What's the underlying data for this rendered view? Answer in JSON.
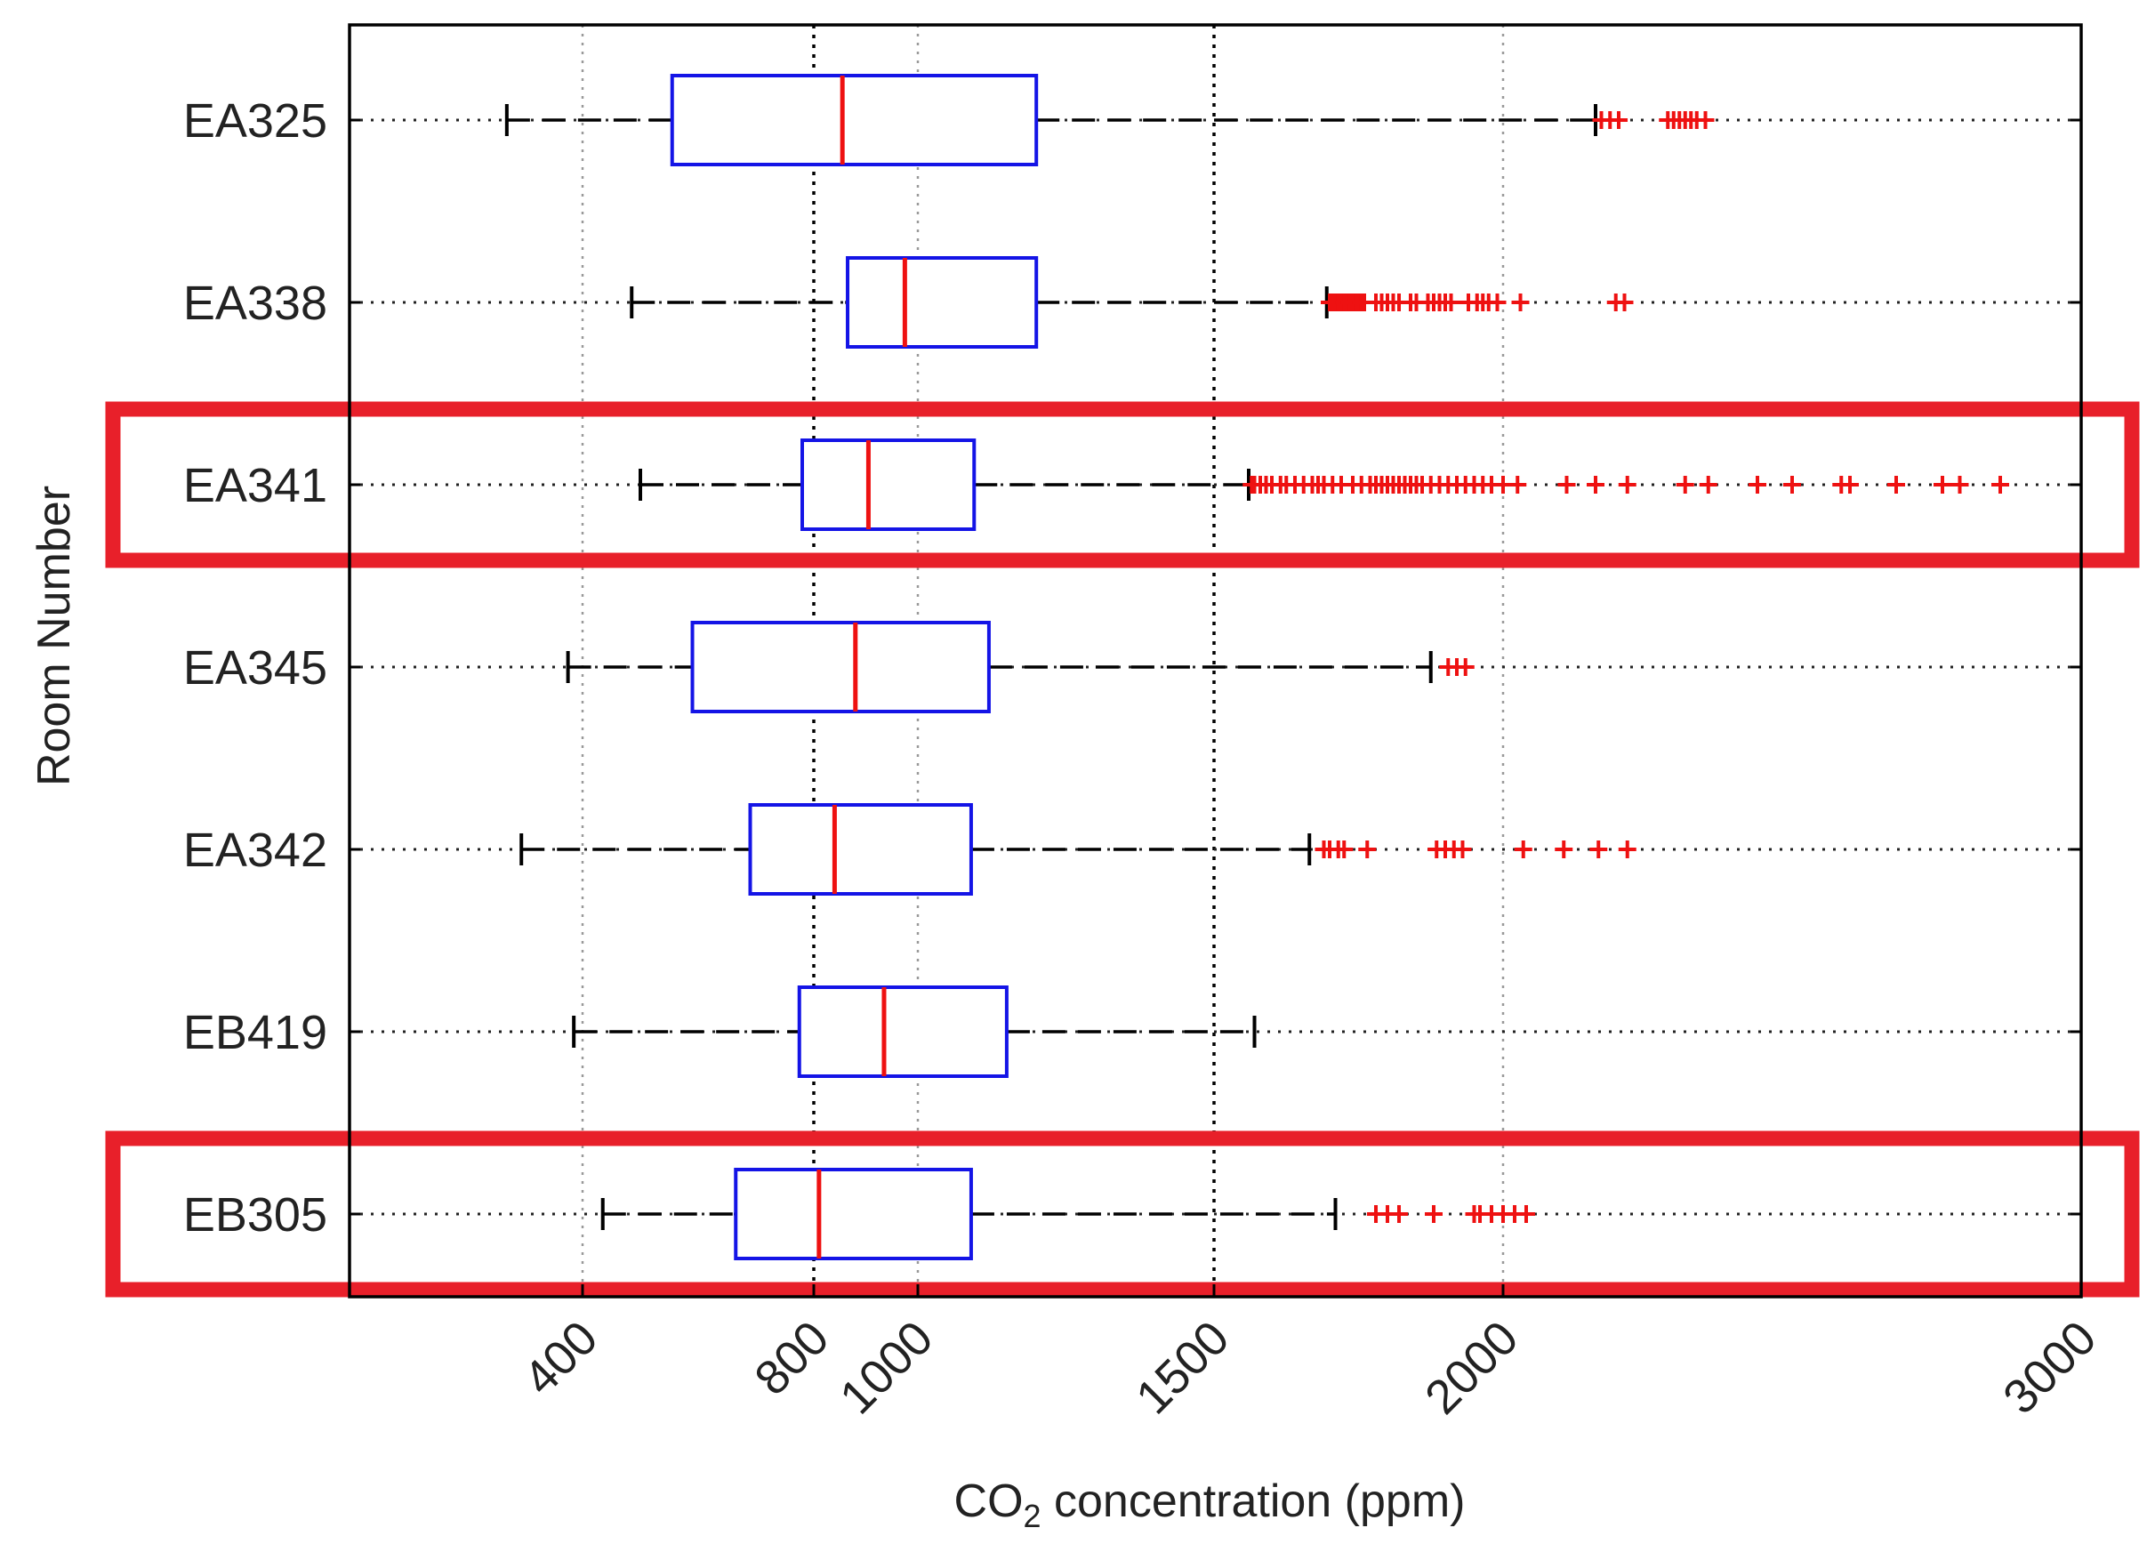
{
  "chart_data": {
    "type": "boxplot",
    "orientation": "horizontal",
    "title": "",
    "xlabel": "CO2 concentration (ppm)",
    "xlabel_main": "CO",
    "xlabel_sub": "2",
    "xlabel_rest": " concentration (ppm)",
    "ylabel": "Room Number",
    "xlim": [
      0,
      3000
    ],
    "x_scale": "piecewise-linear",
    "x_ticks": [
      {
        "value": 400,
        "label": "400"
      },
      {
        "value": 800,
        "label": "800"
      },
      {
        "value": 1000,
        "label": "1000"
      },
      {
        "value": 1500,
        "label": "1500"
      },
      {
        "value": 2000,
        "label": "2000"
      },
      {
        "value": 3000,
        "label": "3000"
      }
    ],
    "highlighted_categories": [
      "EA341",
      "EB305"
    ],
    "categories": [
      {
        "name": "EA325",
        "whisker_low": 270,
        "q1": 555,
        "median": 855,
        "q3": 1200,
        "whisker_high": 2160,
        "outliers": [
          2170,
          2185,
          2200,
          2285,
          2295,
          2305,
          2315,
          2325,
          2335,
          2350
        ]
      },
      {
        "name": "EA338",
        "whisker_low": 485,
        "q1": 865,
        "median": 975,
        "q3": 1200,
        "whisker_high": 1695,
        "outliers": [
          1700,
          1705,
          1710,
          1715,
          1720,
          1725,
          1730,
          1735,
          1740,
          1745,
          1750,
          1755,
          1760,
          1780,
          1790,
          1800,
          1810,
          1820,
          1840,
          1850,
          1870,
          1880,
          1890,
          1900,
          1910,
          1940,
          1955,
          1965,
          1975,
          1990,
          2030,
          2195,
          2210
        ]
      },
      {
        "name": "EA341",
        "whisker_low": 500,
        "q1": 780,
        "median": 905,
        "q3": 1095,
        "whisker_high": 1560,
        "outliers": [
          1565,
          1570,
          1580,
          1590,
          1600,
          1615,
          1625,
          1640,
          1655,
          1670,
          1680,
          1690,
          1705,
          1720,
          1740,
          1755,
          1770,
          1780,
          1790,
          1800,
          1810,
          1820,
          1830,
          1840,
          1850,
          1860,
          1875,
          1890,
          1905,
          1920,
          1935,
          1950,
          1965,
          1980,
          2000,
          2025,
          2110,
          2160,
          2215,
          2315,
          2355,
          2440,
          2500,
          2585,
          2600,
          2680,
          2760,
          2790,
          2860
        ]
      },
      {
        "name": "EA345",
        "whisker_low": 375,
        "q1": 590,
        "median": 880,
        "q3": 1120,
        "whisker_high": 1875,
        "outliers": [
          1905,
          1920,
          1935
        ]
      },
      {
        "name": "EA342",
        "whisker_low": 295,
        "q1": 690,
        "median": 840,
        "q3": 1090,
        "whisker_high": 1665,
        "outliers": [
          1690,
          1700,
          1715,
          1725,
          1765,
          1885,
          1900,
          1915,
          1930,
          2035,
          2105,
          2165,
          2215
        ]
      },
      {
        "name": "EB419",
        "whisker_low": 385,
        "q1": 775,
        "median": 935,
        "q3": 1150,
        "whisker_high": 1570,
        "outliers": []
      },
      {
        "name": "EB305",
        "whisker_low": 435,
        "q1": 665,
        "median": 810,
        "q3": 1090,
        "whisker_high": 1710,
        "outliers": [
          1780,
          1800,
          1820,
          1880,
          1950,
          1960,
          1980,
          2000,
          2020,
          2040
        ]
      }
    ]
  }
}
